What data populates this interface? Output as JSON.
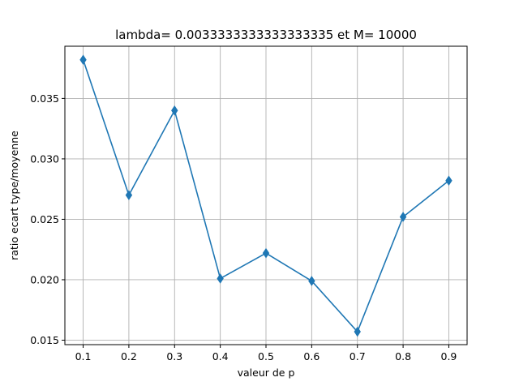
{
  "chart_data": {
    "type": "line",
    "title": "lambda= 0.0033333333333333335 et M= 10000",
    "xlabel": "valeur de p",
    "ylabel": "ratio ecart type/moyenne",
    "x": [
      0.1,
      0.2,
      0.3,
      0.4,
      0.5,
      0.6,
      0.7,
      0.8,
      0.9
    ],
    "series": [
      {
        "values": [
          0.0382,
          0.027,
          0.034,
          0.0201,
          0.0222,
          0.0199,
          0.0157,
          0.0252,
          0.0282
        ],
        "color": "#1f77b4",
        "marker": "thin-diamond"
      }
    ],
    "xlim": [
      0.06,
      0.94
    ],
    "ylim": [
      0.01463,
      0.03932
    ],
    "xticks": [
      "0.1",
      "0.2",
      "0.3",
      "0.4",
      "0.5",
      "0.6",
      "0.7",
      "0.8",
      "0.9"
    ],
    "yticks": [
      "0.015",
      "0.020",
      "0.025",
      "0.030",
      "0.035"
    ],
    "grid": true
  }
}
